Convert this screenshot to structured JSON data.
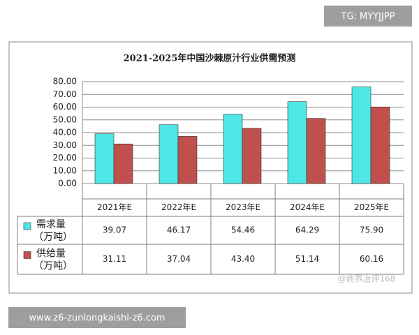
{
  "chart_data": {
    "type": "bar",
    "title": "2021-2025年中国沙棘原汁行业供需预测",
    "categories": [
      "2021年E",
      "2022年E",
      "2023年E",
      "2024年E",
      "2025年E"
    ],
    "series": [
      {
        "name": "需求量（万吨）",
        "color": "#4fe6e6",
        "values": [
          39.07,
          46.17,
          54.46,
          64.29,
          75.9
        ],
        "value_labels": [
          "39.07",
          "46.17",
          "54.46",
          "64.29",
          "75.90"
        ]
      },
      {
        "name": "供给量（万吨）",
        "color": "#c0504d",
        "values": [
          31.11,
          37.04,
          43.4,
          51.14,
          60.16
        ],
        "value_labels": [
          "31.11",
          "37.04",
          "43.40",
          "51.14",
          "60.16"
        ]
      }
    ],
    "ylim": [
      0,
      80
    ],
    "yticks": [
      {
        "value": 0,
        "label": "0.00"
      },
      {
        "value": 10,
        "label": "10.00"
      },
      {
        "value": 20,
        "label": "20.00"
      },
      {
        "value": 30,
        "label": "30.00"
      },
      {
        "value": 40,
        "label": "40.00"
      },
      {
        "value": 50,
        "label": "50.00"
      },
      {
        "value": 60,
        "label": "60.00"
      },
      {
        "value": 70,
        "label": "70.00"
      },
      {
        "value": 80,
        "label": "80.00"
      }
    ],
    "grid": true
  },
  "top_badge": "TG: MYYJJPP",
  "bottom_badge": "www.z6-zunlongkaishi-z6.com",
  "watermark": "@商界冶评168"
}
